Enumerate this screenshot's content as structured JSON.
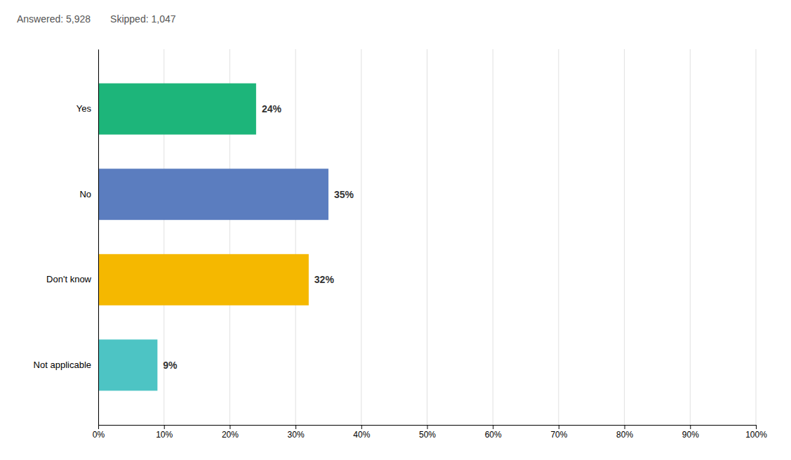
{
  "chart_data": {
    "type": "bar",
    "orientation": "horizontal",
    "annotations": [
      "Answered: 5,928",
      "Skipped: 1,047"
    ],
    "categories": [
      "Yes",
      "No",
      "Don't know",
      "Not applicable"
    ],
    "values": [
      24,
      35,
      32,
      9
    ],
    "value_labels": [
      "24%",
      "35%",
      "32%",
      "9%"
    ],
    "colors": [
      "#1db57a",
      "#5b7dbf",
      "#f5b800",
      "#4dc4c4"
    ],
    "data_labels": true,
    "xlim": [
      0,
      100
    ],
    "xticks": [
      {
        "value": 0,
        "label": "0%"
      },
      {
        "value": 10,
        "label": "10%"
      },
      {
        "value": 20,
        "label": "20%"
      },
      {
        "value": 30,
        "label": "30%"
      },
      {
        "value": 40,
        "label": "40%"
      },
      {
        "value": 50,
        "label": "50%"
      },
      {
        "value": 60,
        "label": "60%"
      },
      {
        "value": 70,
        "label": "70%"
      },
      {
        "value": 80,
        "label": "80%"
      },
      {
        "value": 90,
        "label": "90%"
      },
      {
        "value": 100,
        "label": "100%"
      }
    ],
    "grid": true
  }
}
